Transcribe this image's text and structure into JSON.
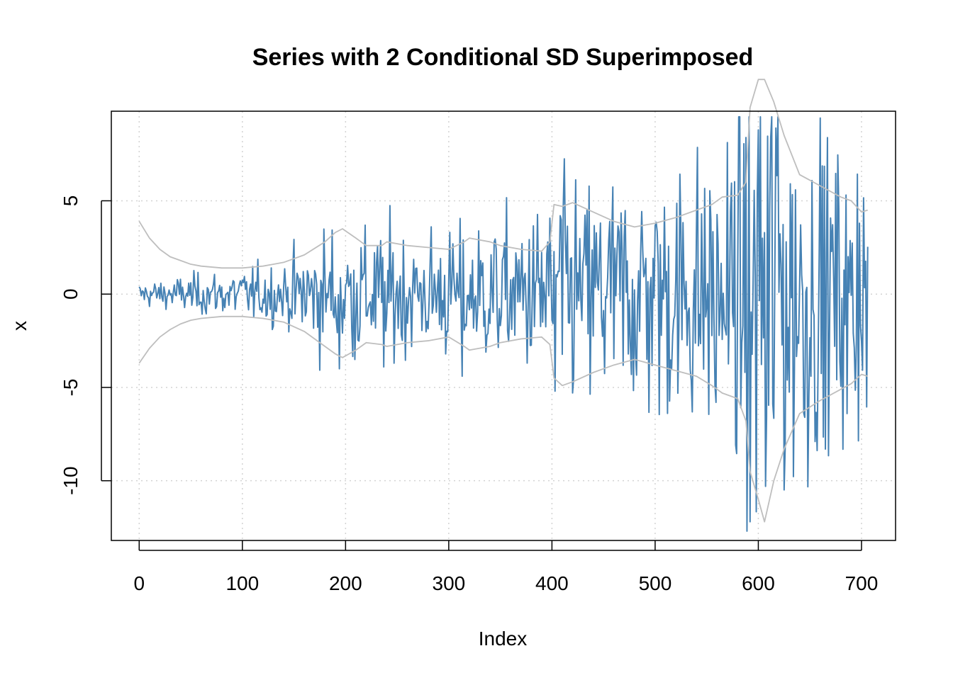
{
  "chart_data": {
    "type": "line",
    "title": "Series with 2 Conditional SD Superimposed",
    "xlabel": "Index",
    "ylabel": "x",
    "xlim": [
      -27,
      733
    ],
    "ylim": [
      -13.2,
      9.8
    ],
    "x_ticks": [
      0,
      100,
      200,
      300,
      400,
      500,
      600,
      700
    ],
    "y_ticks": [
      -10,
      -5,
      0,
      5
    ],
    "grid": true,
    "grid_style": "dotted",
    "n": 707,
    "series": [
      {
        "role": "data",
        "color": "#4682B4",
        "kind": "series",
        "envelope": [
          [
            0,
            0.35
          ],
          [
            50,
            0.6
          ],
          [
            100,
            0.8
          ],
          [
            140,
            1.0
          ],
          [
            180,
            2.0
          ],
          [
            200,
            2.2
          ],
          [
            250,
            2.0
          ],
          [
            300,
            2.0
          ],
          [
            350,
            2.3
          ],
          [
            395,
            2.8
          ],
          [
            400,
            3.5
          ],
          [
            450,
            3.6
          ],
          [
            500,
            4.0
          ],
          [
            550,
            4.5
          ],
          [
            580,
            5.2
          ],
          [
            590,
            6.5
          ],
          [
            600,
            8.5
          ],
          [
            615,
            8.5
          ],
          [
            650,
            5.5
          ],
          [
            700,
            4.0
          ],
          [
            706,
            3.8
          ]
        ],
        "spikes": [
          [
            194,
            -4.0
          ],
          [
            237,
            -3.9
          ],
          [
            313,
            -4.4
          ],
          [
            403,
            -5.2
          ],
          [
            408,
            4.2
          ],
          [
            559,
            -5.8
          ],
          [
            592,
            -12.2
          ],
          [
            600,
            8.8
          ],
          [
            607,
            -10.3
          ],
          [
            617,
            8.9
          ],
          [
            645,
            -6.6
          ],
          [
            686,
            -6.4
          ],
          [
            698,
            3.8
          ]
        ]
      },
      {
        "role": "upper",
        "color": "#BEBEBE",
        "points": [
          [
            0,
            3.9
          ],
          [
            10,
            3.0
          ],
          [
            20,
            2.4
          ],
          [
            30,
            2.0
          ],
          [
            40,
            1.8
          ],
          [
            50,
            1.6
          ],
          [
            60,
            1.5
          ],
          [
            80,
            1.4
          ],
          [
            100,
            1.4
          ],
          [
            120,
            1.5
          ],
          [
            140,
            1.7
          ],
          [
            160,
            2.1
          ],
          [
            180,
            2.8
          ],
          [
            190,
            3.3
          ],
          [
            197,
            3.5
          ],
          [
            210,
            3.0
          ],
          [
            220,
            2.6
          ],
          [
            235,
            2.6
          ],
          [
            240,
            2.8
          ],
          [
            260,
            2.6
          ],
          [
            280,
            2.5
          ],
          [
            300,
            2.4
          ],
          [
            315,
            2.8
          ],
          [
            320,
            3.0
          ],
          [
            340,
            2.8
          ],
          [
            350,
            2.6
          ],
          [
            370,
            2.4
          ],
          [
            390,
            2.3
          ],
          [
            398,
            2.8
          ],
          [
            402,
            4.8
          ],
          [
            410,
            4.7
          ],
          [
            420,
            4.9
          ],
          [
            440,
            4.4
          ],
          [
            460,
            3.9
          ],
          [
            480,
            3.6
          ],
          [
            500,
            3.8
          ],
          [
            520,
            4.1
          ],
          [
            540,
            4.5
          ],
          [
            555,
            4.8
          ],
          [
            565,
            5.2
          ],
          [
            580,
            5.3
          ],
          [
            588,
            6.0
          ],
          [
            592,
            10.0
          ],
          [
            600,
            11.5
          ],
          [
            606,
            11.5
          ],
          [
            615,
            10.3
          ],
          [
            625,
            8.5
          ],
          [
            640,
            6.4
          ],
          [
            660,
            5.8
          ],
          [
            680,
            5.2
          ],
          [
            690,
            5.0
          ],
          [
            700,
            4.4
          ],
          [
            706,
            4.5
          ]
        ]
      },
      {
        "role": "lower",
        "color": "#BEBEBE",
        "points": [
          [
            0,
            -3.7
          ],
          [
            10,
            -2.9
          ],
          [
            20,
            -2.3
          ],
          [
            30,
            -1.9
          ],
          [
            40,
            -1.6
          ],
          [
            50,
            -1.4
          ],
          [
            60,
            -1.3
          ],
          [
            80,
            -1.2
          ],
          [
            100,
            -1.2
          ],
          [
            120,
            -1.3
          ],
          [
            140,
            -1.5
          ],
          [
            160,
            -2.0
          ],
          [
            180,
            -2.8
          ],
          [
            190,
            -3.2
          ],
          [
            197,
            -3.4
          ],
          [
            210,
            -3.0
          ],
          [
            220,
            -2.6
          ],
          [
            235,
            -2.7
          ],
          [
            240,
            -2.8
          ],
          [
            260,
            -2.6
          ],
          [
            280,
            -2.5
          ],
          [
            300,
            -2.3
          ],
          [
            315,
            -2.8
          ],
          [
            320,
            -3.0
          ],
          [
            340,
            -2.8
          ],
          [
            350,
            -2.6
          ],
          [
            370,
            -2.4
          ],
          [
            390,
            -2.3
          ],
          [
            398,
            -2.7
          ],
          [
            402,
            -4.5
          ],
          [
            410,
            -4.9
          ],
          [
            420,
            -4.7
          ],
          [
            440,
            -4.2
          ],
          [
            460,
            -3.8
          ],
          [
            480,
            -3.5
          ],
          [
            500,
            -3.8
          ],
          [
            520,
            -4.1
          ],
          [
            540,
            -4.4
          ],
          [
            555,
            -4.9
          ],
          [
            565,
            -5.3
          ],
          [
            580,
            -5.6
          ],
          [
            588,
            -6.8
          ],
          [
            592,
            -9.5
          ],
          [
            600,
            -11.0
          ],
          [
            606,
            -12.2
          ],
          [
            615,
            -10.0
          ],
          [
            625,
            -8.3
          ],
          [
            640,
            -6.4
          ],
          [
            660,
            -5.7
          ],
          [
            680,
            -5.1
          ],
          [
            690,
            -4.8
          ],
          [
            700,
            -4.3
          ],
          [
            706,
            -4.4
          ]
        ]
      }
    ]
  }
}
